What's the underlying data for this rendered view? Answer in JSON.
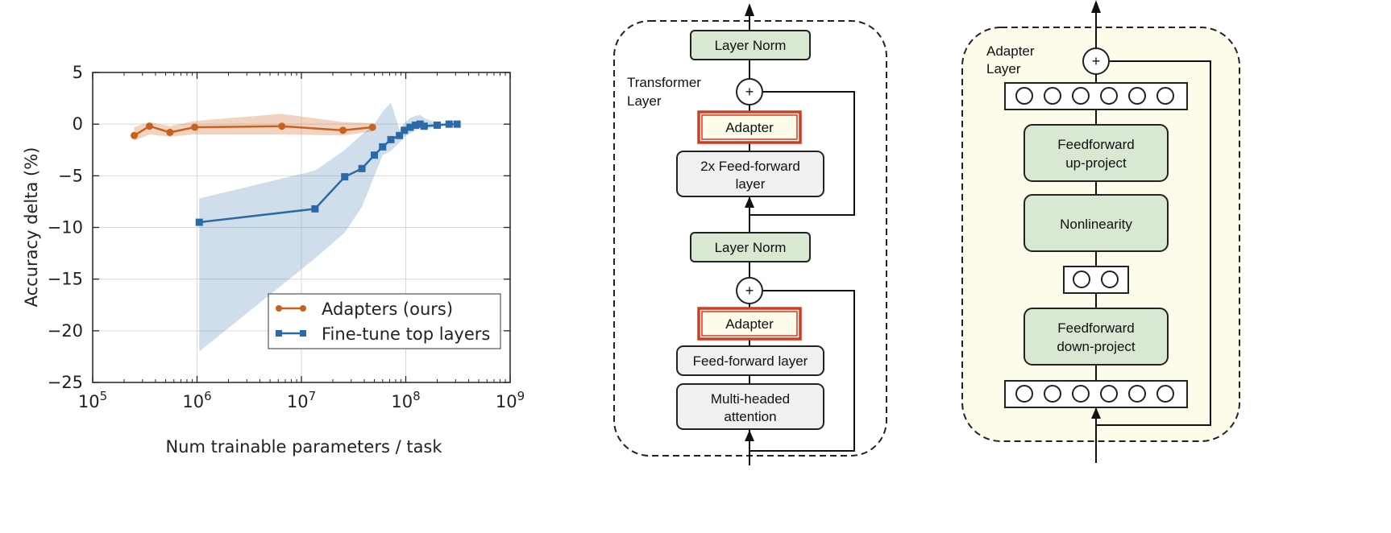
{
  "chart_data": {
    "type": "line",
    "xlabel": "Num trainable parameters / task",
    "ylabel": "Accuracy delta (%)",
    "xscale": "log",
    "xlim": [
      100000,
      1000000000
    ],
    "ylim": [
      -25,
      5
    ],
    "grid": true,
    "legend_position": "lower-right",
    "x_ticks": [
      {
        "base": "10",
        "exp": "5"
      },
      {
        "base": "10",
        "exp": "6"
      },
      {
        "base": "10",
        "exp": "7"
      },
      {
        "base": "10",
        "exp": "8"
      },
      {
        "base": "10",
        "exp": "9"
      }
    ],
    "y_ticks": [
      "5",
      "0",
      "−5",
      "−10",
      "−15",
      "−20",
      "−25"
    ],
    "y_tick_values": [
      5,
      0,
      -5,
      -10,
      -15,
      -20,
      -25
    ],
    "series": [
      {
        "name": "Adapters (ours)",
        "color": "#c8601e",
        "marker": "circle",
        "x": [
          250000,
          350000,
          550000,
          950000,
          6500000,
          25000000,
          48000000
        ],
        "y": [
          -1.1,
          -0.2,
          -0.8,
          -0.3,
          -0.2,
          -0.6,
          -0.3
        ],
        "band_upper": [
          -0.3,
          0.2,
          -0.2,
          0.3,
          1.0,
          0.2,
          0.1
        ],
        "band_lower": [
          -1.6,
          -1.0,
          -1.2,
          -1.0,
          -1.0,
          -1.1,
          -0.7
        ]
      },
      {
        "name": "Fine-tune top layers",
        "color": "#2a6aa8",
        "marker": "square",
        "x": [
          1050000,
          13500000,
          26000000,
          38000000,
          50000000,
          60000000,
          72000000,
          87000000,
          97000000,
          110000000,
          124000000,
          137000000,
          150000000,
          200000000,
          260000000,
          310000000
        ],
        "y": [
          -9.5,
          -8.2,
          -5.1,
          -4.3,
          -3.0,
          -2.2,
          -1.5,
          -1.1,
          -0.6,
          -0.3,
          -0.1,
          0.0,
          -0.2,
          -0.1,
          0.0,
          0.0
        ],
        "band_upper": [
          -7.2,
          -4.5,
          -2.5,
          -1.0,
          0.0,
          1.2,
          2.1,
          -0.5,
          0.1,
          0.6,
          0.8,
          0.9,
          0.6,
          0.1,
          0.0,
          0.0
        ],
        "band_lower": [
          -22.0,
          -13.0,
          -10.5,
          -8.0,
          -5.0,
          -3.0,
          -2.6,
          -1.8,
          -1.2,
          -0.9,
          -0.6,
          -0.5,
          -0.5,
          -0.3,
          -0.1,
          0.0
        ]
      }
    ]
  },
  "transformer": {
    "title_line1": "Transformer",
    "title_line2": "Layer",
    "layer_norm_top": "Layer Norm",
    "adapter_top": "Adapter",
    "ffn_line1": "2x Feed-forward",
    "ffn_line2": "layer",
    "layer_norm_bottom": "Layer Norm",
    "adapter_bottom": "Adapter",
    "ff_layer": "Feed-forward layer",
    "attn_line1": "Multi-headed",
    "attn_line2": "attention",
    "plus": "+"
  },
  "adapter_layer": {
    "title_line1": "Adapter",
    "title_line2": "Layer",
    "up_line1": "Feedforward",
    "up_line2": "up-project",
    "nonlinearity": "Nonlinearity",
    "down_line1": "Feedforward",
    "down_line2": "down-project",
    "plus": "+"
  },
  "colors": {
    "box_green": "#d8e8d3",
    "box_gray": "#f0f0f0",
    "adapter_highlight": "#d63a1e",
    "adapter_bg": "#fdfbea"
  }
}
